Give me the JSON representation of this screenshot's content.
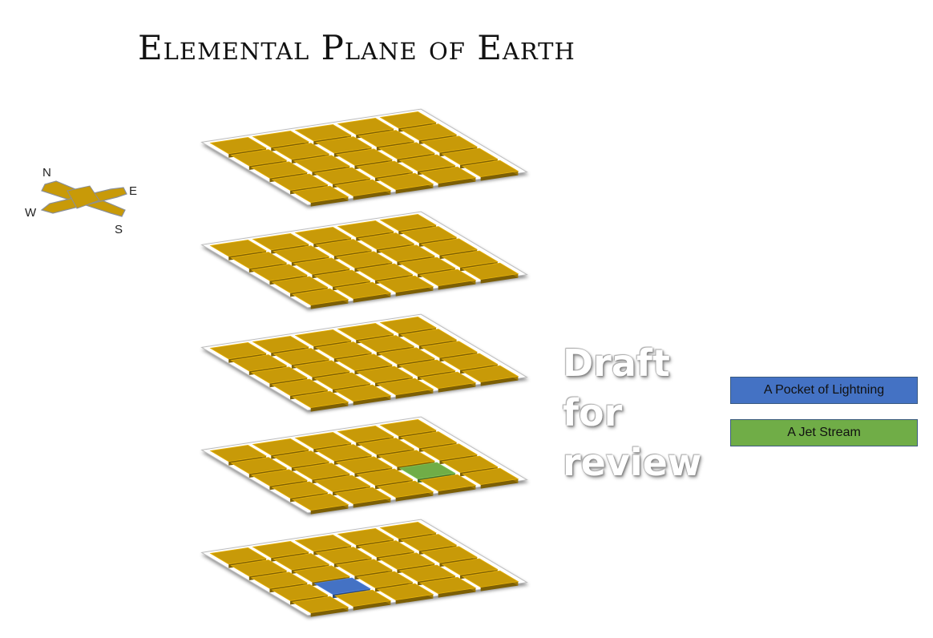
{
  "title": "Elemental Plane of Earth",
  "compass": {
    "north": "N",
    "east": "E",
    "south": "S",
    "west": "W",
    "icon": "compass-arrows-icon",
    "color": "#c89a08"
  },
  "watermark": [
    "Draft",
    "for",
    "review"
  ],
  "grid": {
    "layers": 5,
    "rows": 5,
    "cols": 5,
    "tile_color": "#c89a08",
    "highlights": [
      {
        "layer": 4,
        "row": 4,
        "col": 4,
        "color": "#70ad47",
        "legend_index": 1
      },
      {
        "layer": 5,
        "row": 4,
        "col": 2,
        "color": "#4472c4",
        "legend_index": 0
      }
    ]
  },
  "legend": [
    {
      "label": "A Pocket of Lightning",
      "color": "#4472c4"
    },
    {
      "label": "A Jet Stream",
      "color": "#70ad47"
    }
  ]
}
